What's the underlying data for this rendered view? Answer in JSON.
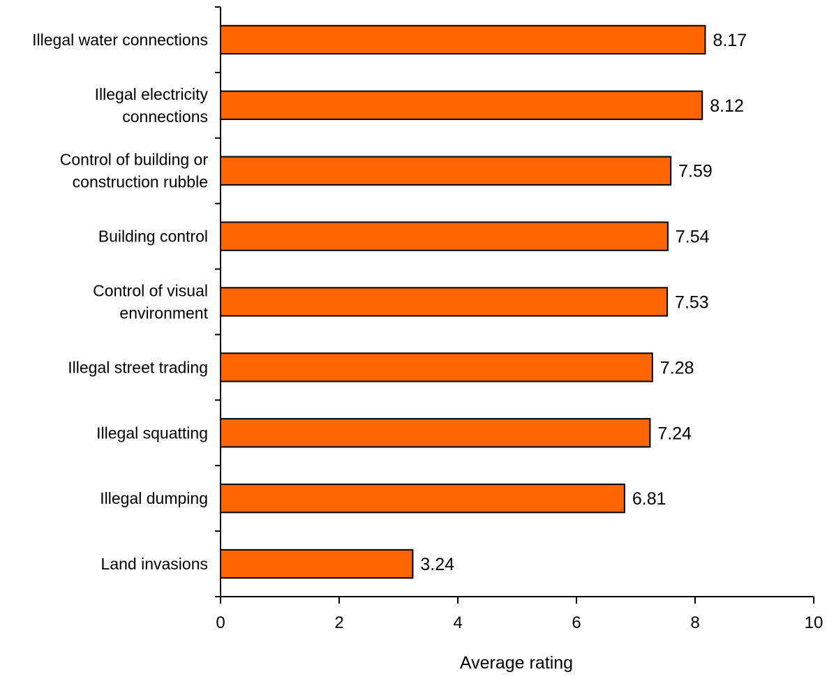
{
  "chart_data": {
    "type": "bar",
    "orientation": "horizontal",
    "categories": [
      [
        "Illegal water connections"
      ],
      [
        "Illegal electricity",
        "connections"
      ],
      [
        "Control of building or",
        "construction rubble"
      ],
      [
        "Building control"
      ],
      [
        "Control of visual",
        "environment"
      ],
      [
        "Illegal street trading"
      ],
      [
        "Illegal squatting"
      ],
      [
        "Illegal dumping"
      ],
      [
        "Land invasions"
      ]
    ],
    "values": [
      8.17,
      8.12,
      7.59,
      7.54,
      7.53,
      7.28,
      7.24,
      6.81,
      3.24
    ],
    "value_labels": [
      "8.17",
      "8.12",
      "7.59",
      "7.54",
      "7.53",
      "7.28",
      "7.24",
      "6.81",
      "3.24"
    ],
    "xlabel": "Average rating",
    "xlim": [
      0,
      10
    ],
    "xticks": [
      "0",
      "2",
      "4",
      "6",
      "8",
      "10"
    ],
    "grid": false,
    "legend": "none",
    "bar_color": "#ff6600",
    "bar_edge_color": "#000000"
  }
}
